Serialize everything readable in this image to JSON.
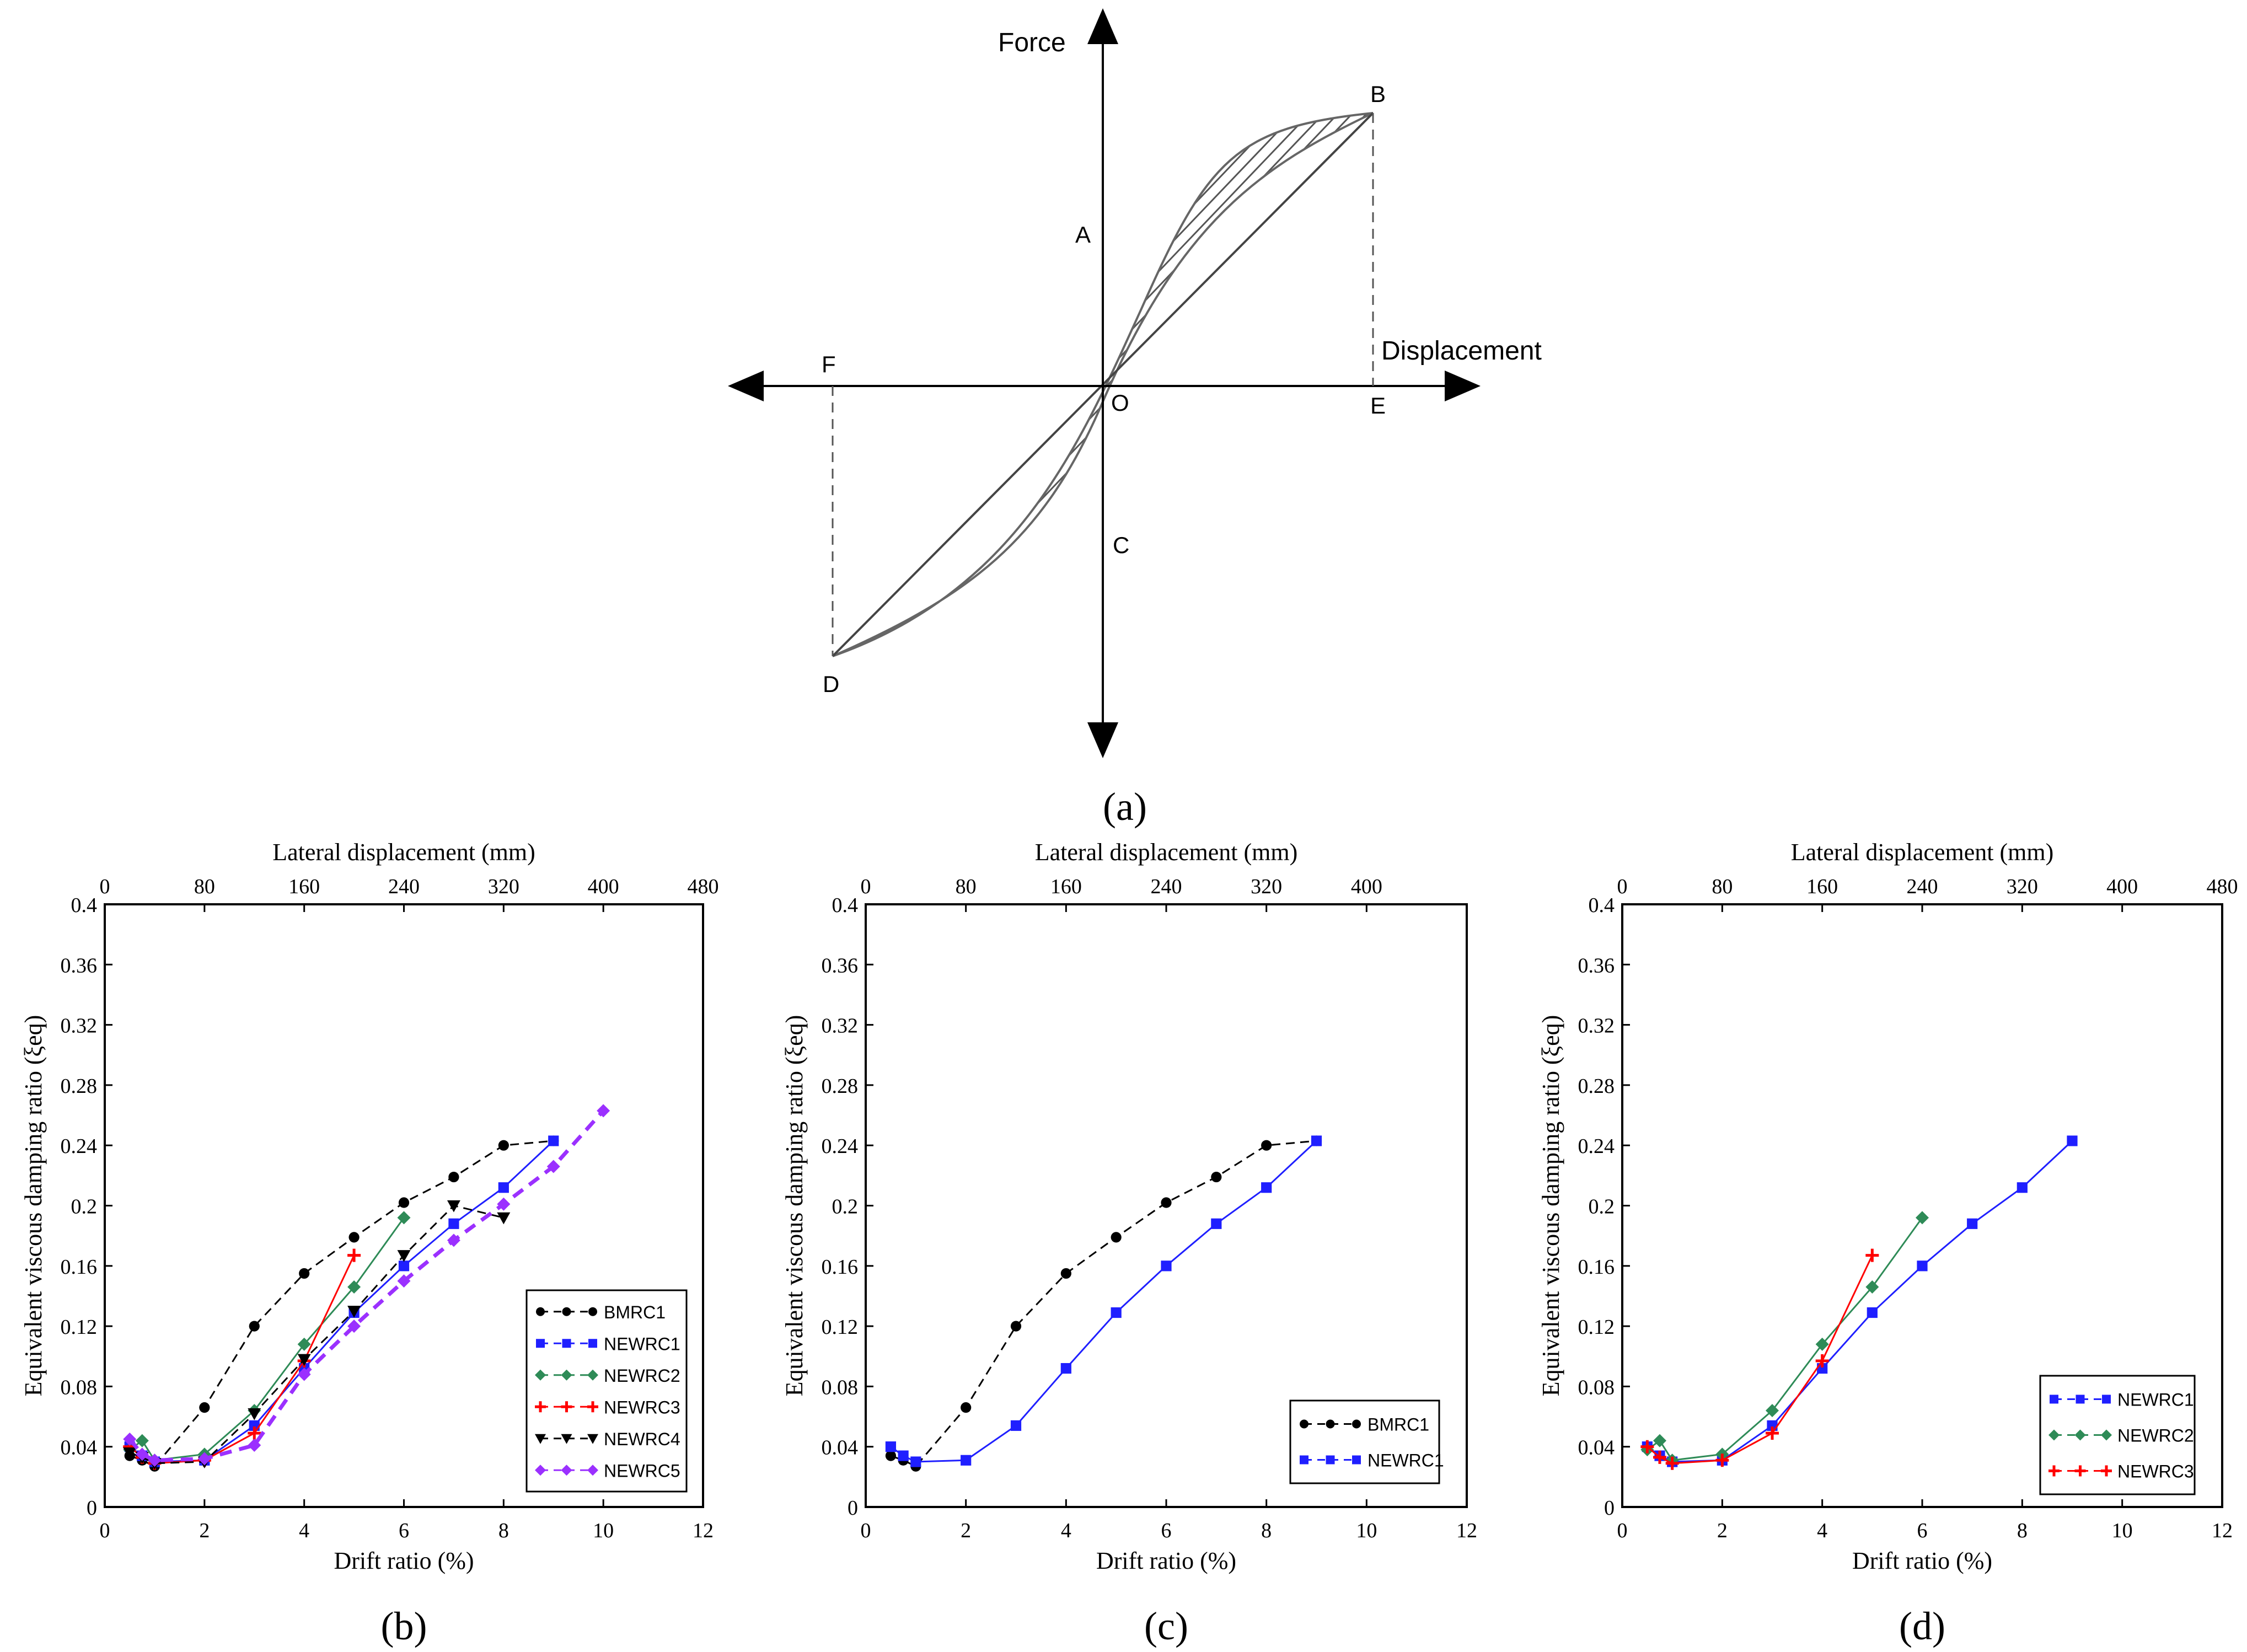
{
  "hysteresis": {
    "panel_label": "(a)",
    "axis_y_label": "Force",
    "axis_x_label": "Displacement",
    "points": {
      "A": "A",
      "B": "B",
      "C": "C",
      "D": "D",
      "E": "E",
      "F": "F",
      "O": "O"
    }
  },
  "chart_data": [
    {
      "type": "line",
      "panel_label": "(b)",
      "xlabel": "Drift ratio (%)",
      "ylabel": "Equivalent viscous damping ratio (ξeq)",
      "x2label": "Lateral displacement (mm)",
      "xlim": [
        0,
        12
      ],
      "ylim": [
        0,
        0.4
      ],
      "x2lim": [
        0,
        480
      ],
      "xticks": [
        0,
        2,
        4,
        6,
        8,
        10,
        12
      ],
      "yticks": [
        0,
        0.04,
        0.08,
        0.12,
        0.16,
        0.2,
        0.24,
        0.28,
        0.32,
        0.36,
        0.4
      ],
      "x2ticks": [
        0,
        80,
        160,
        240,
        320,
        400,
        480
      ],
      "legend_position": "bottom-right",
      "series": [
        {
          "name": "BMRC1",
          "color": "#000000",
          "marker": "circle",
          "x": [
            0.5,
            0.75,
            1,
            2,
            3,
            4,
            5,
            6,
            7,
            8,
            9
          ],
          "y": [
            0.034,
            0.031,
            0.027,
            0.066,
            0.12,
            0.155,
            0.179,
            0.202,
            0.219,
            0.24,
            0.243
          ]
        },
        {
          "name": "NEWRC1",
          "color": "#1f1fff",
          "marker": "square",
          "x": [
            0.5,
            0.75,
            1,
            2,
            3,
            4,
            5,
            6,
            7,
            8,
            9
          ],
          "y": [
            0.04,
            0.034,
            0.03,
            0.031,
            0.054,
            0.092,
            0.129,
            0.16,
            0.188,
            0.212,
            0.243
          ]
        },
        {
          "name": "NEWRC2",
          "color": "#2e8b57",
          "marker": "diamond",
          "x": [
            0.5,
            0.75,
            1,
            2,
            3,
            4,
            5,
            6
          ],
          "y": [
            0.038,
            0.044,
            0.031,
            0.035,
            0.064,
            0.108,
            0.146,
            0.192
          ]
        },
        {
          "name": "NEWRC3",
          "color": "#ff0000",
          "marker": "plus",
          "x": [
            0.5,
            0.75,
            1,
            2,
            3,
            4,
            5
          ],
          "y": [
            0.04,
            0.033,
            0.029,
            0.031,
            0.049,
            0.097,
            0.167
          ]
        },
        {
          "name": "NEWRC4",
          "color": "#000000",
          "marker": "triangle-down",
          "x": [
            0.5,
            0.75,
            1,
            2,
            3,
            4,
            5,
            6,
            7,
            8
          ],
          "y": [
            0.036,
            0.033,
            0.029,
            0.03,
            0.062,
            0.098,
            0.13,
            0.167,
            0.2,
            0.192
          ]
        },
        {
          "name": "NEWRC5",
          "color": "#9b30ff",
          "marker": "diamond",
          "x": [
            0.5,
            0.75,
            1,
            2,
            3,
            4,
            5,
            6,
            7,
            8,
            9,
            10
          ],
          "y": [
            0.045,
            0.035,
            0.031,
            0.032,
            0.041,
            0.088,
            0.12,
            0.15,
            0.177,
            0.201,
            0.226,
            0.263
          ]
        }
      ]
    },
    {
      "type": "line",
      "panel_label": "(c)",
      "xlabel": "Drift ratio (%)",
      "ylabel": "Equivalent viscous damping ratio (ξeq)",
      "x2label": "Lateral displacement (mm)",
      "xlim": [
        0,
        12
      ],
      "ylim": [
        0,
        0.4
      ],
      "x2lim": [
        0,
        480
      ],
      "xticks": [
        0,
        2,
        4,
        6,
        8,
        10,
        12
      ],
      "yticks": [
        0,
        0.04,
        0.08,
        0.12,
        0.16,
        0.2,
        0.24,
        0.28,
        0.32,
        0.36,
        0.4
      ],
      "x2ticks": [
        0,
        80,
        160,
        240,
        320,
        400
      ],
      "legend_position": "bottom-right",
      "series": [
        {
          "name": "BMRC1",
          "color": "#000000",
          "marker": "circle",
          "x": [
            0.5,
            0.75,
            1,
            2,
            3,
            4,
            5,
            6,
            7,
            8,
            9
          ],
          "y": [
            0.034,
            0.031,
            0.027,
            0.066,
            0.12,
            0.155,
            0.179,
            0.202,
            0.219,
            0.24,
            0.243
          ]
        },
        {
          "name": "NEWRC1",
          "color": "#1f1fff",
          "marker": "square",
          "x": [
            0.5,
            0.75,
            1,
            2,
            3,
            4,
            5,
            6,
            7,
            8,
            9
          ],
          "y": [
            0.04,
            0.034,
            0.03,
            0.031,
            0.054,
            0.092,
            0.129,
            0.16,
            0.188,
            0.212,
            0.243
          ]
        }
      ]
    },
    {
      "type": "line",
      "panel_label": "(d)",
      "xlabel": "Drift ratio (%)",
      "ylabel": "Equivalent viscous damping ratio (ξeq)",
      "x2label": "Lateral displacement (mm)",
      "xlim": [
        0,
        12
      ],
      "ylim": [
        0,
        0.4
      ],
      "x2lim": [
        0,
        480
      ],
      "xticks": [
        0,
        2,
        4,
        6,
        8,
        10,
        12
      ],
      "yticks": [
        0,
        0.04,
        0.08,
        0.12,
        0.16,
        0.2,
        0.24,
        0.28,
        0.32,
        0.36,
        0.4
      ],
      "x2ticks": [
        0,
        80,
        160,
        240,
        320,
        400,
        480
      ],
      "legend_position": "bottom-right",
      "series": [
        {
          "name": "NEWRC1",
          "color": "#1f1fff",
          "marker": "square",
          "x": [
            0.5,
            0.75,
            1,
            2,
            3,
            4,
            5,
            6,
            7,
            8,
            9
          ],
          "y": [
            0.04,
            0.034,
            0.03,
            0.031,
            0.054,
            0.092,
            0.129,
            0.16,
            0.188,
            0.212,
            0.243
          ]
        },
        {
          "name": "NEWRC2",
          "color": "#2e8b57",
          "marker": "diamond",
          "x": [
            0.5,
            0.75,
            1,
            2,
            3,
            4,
            5,
            6
          ],
          "y": [
            0.038,
            0.044,
            0.031,
            0.035,
            0.064,
            0.108,
            0.146,
            0.192
          ]
        },
        {
          "name": "NEWRC3",
          "color": "#ff0000",
          "marker": "plus",
          "x": [
            0.5,
            0.75,
            1,
            2,
            3,
            4,
            5
          ],
          "y": [
            0.04,
            0.033,
            0.029,
            0.031,
            0.049,
            0.097,
            0.167
          ]
        }
      ]
    }
  ]
}
